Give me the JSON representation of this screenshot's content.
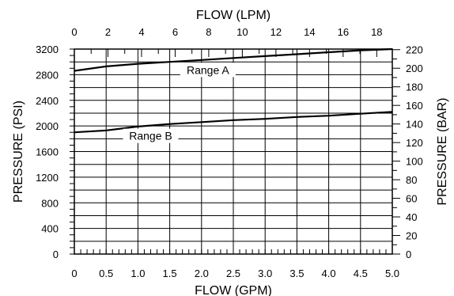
{
  "chart_data": {
    "type": "line",
    "x_bottom": {
      "label": "FLOW (GPM)",
      "range": [
        0,
        5.0
      ],
      "ticks": [
        0,
        0.5,
        1.0,
        1.5,
        2.0,
        2.5,
        3.0,
        3.5,
        4.0,
        4.5,
        5.0
      ],
      "tick_labels": [
        "0",
        "0.5",
        "1.0",
        "1.5",
        "2.0",
        "2.5",
        "3.0",
        "3.5",
        "4.0",
        "4.5",
        "5.0"
      ]
    },
    "x_top": {
      "label": "FLOW (LPM)",
      "ticks": [
        0,
        2,
        4,
        6,
        8,
        10,
        12,
        14,
        16,
        18
      ],
      "tick_labels": [
        "0",
        "2",
        "4",
        "6",
        "8",
        "10",
        "12",
        "14",
        "16",
        "18"
      ],
      "gpm_per_lpm": 0.264172
    },
    "y_left": {
      "label": "PRESSURE (PSI)",
      "range": [
        0,
        3200
      ],
      "ticks": [
        0,
        400,
        800,
        1200,
        1600,
        2000,
        2400,
        2800,
        3200
      ],
      "tick_labels": [
        "0",
        "400",
        "800",
        "1200",
        "1600",
        "2000",
        "2400",
        "2800",
        "3200"
      ]
    },
    "y_right": {
      "label": "PRESSURE (BAR)",
      "ticks": [
        0,
        20,
        40,
        60,
        80,
        100,
        120,
        140,
        160,
        180,
        200,
        220
      ],
      "tick_labels": [
        "0",
        "20",
        "40",
        "60",
        "80",
        "100",
        "120",
        "140",
        "160",
        "180",
        "200",
        "220"
      ],
      "psi_per_bar": 14.5038
    },
    "grid": true,
    "series": [
      {
        "name": "Range A",
        "x": [
          0,
          0.5,
          1.0,
          1.5,
          2.0,
          2.5,
          3.0,
          3.5,
          4.0,
          4.5,
          5.0
        ],
        "y": [
          2860,
          2930,
          2970,
          3000,
          3030,
          3060,
          3090,
          3120,
          3150,
          3180,
          3200
        ]
      },
      {
        "name": "Range B",
        "x": [
          0,
          0.5,
          1.0,
          1.5,
          2.0,
          2.5,
          3.0,
          3.5,
          4.0,
          4.5,
          5.0
        ],
        "y": [
          1900,
          1930,
          1990,
          2030,
          2060,
          2090,
          2110,
          2140,
          2160,
          2190,
          2220
        ]
      }
    ]
  }
}
